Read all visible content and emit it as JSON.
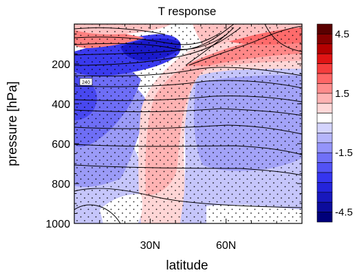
{
  "chart_data": {
    "type": "heatmap",
    "title": "T response",
    "xlabel": "latitude",
    "ylabel": "pressure [hPa]",
    "xlim": [
      0,
      90
    ],
    "ylim": [
      1000,
      0
    ],
    "x_ticks": [
      {
        "value": 30,
        "label": "30N"
      },
      {
        "value": 60,
        "label": "60N"
      }
    ],
    "y_ticks": [
      {
        "value": 200,
        "label": "200"
      },
      {
        "value": 400,
        "label": "400"
      },
      {
        "value": 600,
        "label": "600"
      },
      {
        "value": 800,
        "label": "800"
      },
      {
        "value": 1000,
        "label": "1000"
      }
    ],
    "colorbar": {
      "levels": [
        -4.5,
        -4,
        -3.5,
        -3,
        -2.5,
        -2,
        -1.5,
        -1,
        -0.5,
        0,
        0.5,
        1,
        1.5,
        2,
        2.5,
        3,
        3.5,
        4,
        4.5
      ],
      "labels": [
        {
          "value": 4.5,
          "label": "4.5"
        },
        {
          "value": 1.5,
          "label": "1.5"
        },
        {
          "value": -1.5,
          "label": "-1.5"
        },
        {
          "value": -4.5,
          "label": "-4.5"
        }
      ],
      "colors": [
        "#00007a",
        "#0c0c9c",
        "#1818bd",
        "#2424db",
        "#3535ef",
        "#5252f5",
        "#7070f8",
        "#9494fa",
        "#b5b5fb",
        "#d4d4fd",
        "#ffffff",
        "#ffd8d8",
        "#ffb3b3",
        "#ff8c8c",
        "#ff6666",
        "#f53d3d",
        "#e01414",
        "#b40000",
        "#860000",
        "#5a0000"
      ]
    },
    "contour_label": "240",
    "stipple": true,
    "features": [
      {
        "name": "upper-cold-core",
        "lat": 10,
        "p": 90,
        "value": -4.5
      },
      {
        "name": "tropical-cold",
        "lat": 5,
        "p": 400,
        "value": -2
      },
      {
        "name": "subtropical-warm-band",
        "lat": 35,
        "p": 350,
        "value": 1.5
      },
      {
        "name": "midlat-cold",
        "lat": 65,
        "p": 500,
        "value": -1
      },
      {
        "name": "polar-strat-warm",
        "lat": 80,
        "p": 70,
        "value": 1.5
      }
    ]
  }
}
